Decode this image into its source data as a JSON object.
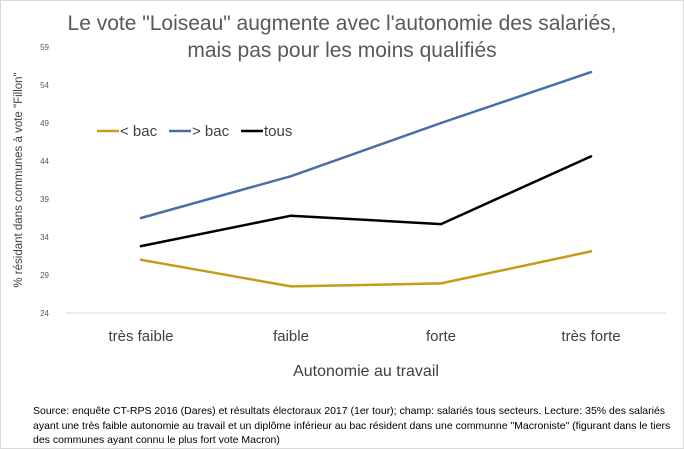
{
  "title_line1": "Le vote \"Loiseau\" augmente avec l'autonomie des salariés,",
  "title_line2": "mais pas pour les moins qualifiés",
  "source_note": "Source: enquête CT-RPS 2016 (Dares) et résultats électoraux 2017 (1er tour); champ: salariés tous secteurs. Lecture: 35% des salariés ayant une très faible autonomie au travail et un diplôme inférieur au bac résident dans une communne \"Macroniste\" (figurant dans le tiers des communes ayant connu le plus fort vote Macron)",
  "chart_data": {
    "type": "line",
    "title": "Le vote \"Loiseau\" augmente avec l'autonomie des salariés, mais pas pour les moins qualifiés",
    "xlabel": "Autonomie au travail",
    "ylabel": "% résidant dans communes à vote \"Fillon\"",
    "categories": [
      "très faible",
      "faible",
      "forte",
      "très forte"
    ],
    "ylim": [
      24,
      59
    ],
    "yticks": [
      24,
      29,
      34,
      39,
      44,
      49,
      54,
      59
    ],
    "grid": false,
    "legend_position": "top-left",
    "series": [
      {
        "name": "< bac",
        "color": "#c59b1a",
        "values": [
          31.0,
          27.5,
          27.9,
          32.1
        ]
      },
      {
        "name": "> bac",
        "color": "#4a6ea8",
        "values": [
          36.5,
          42.0,
          49.0,
          55.7
        ]
      },
      {
        "name": "tous",
        "color": "#000000",
        "values": [
          32.8,
          36.8,
          35.7,
          44.6
        ]
      }
    ]
  }
}
